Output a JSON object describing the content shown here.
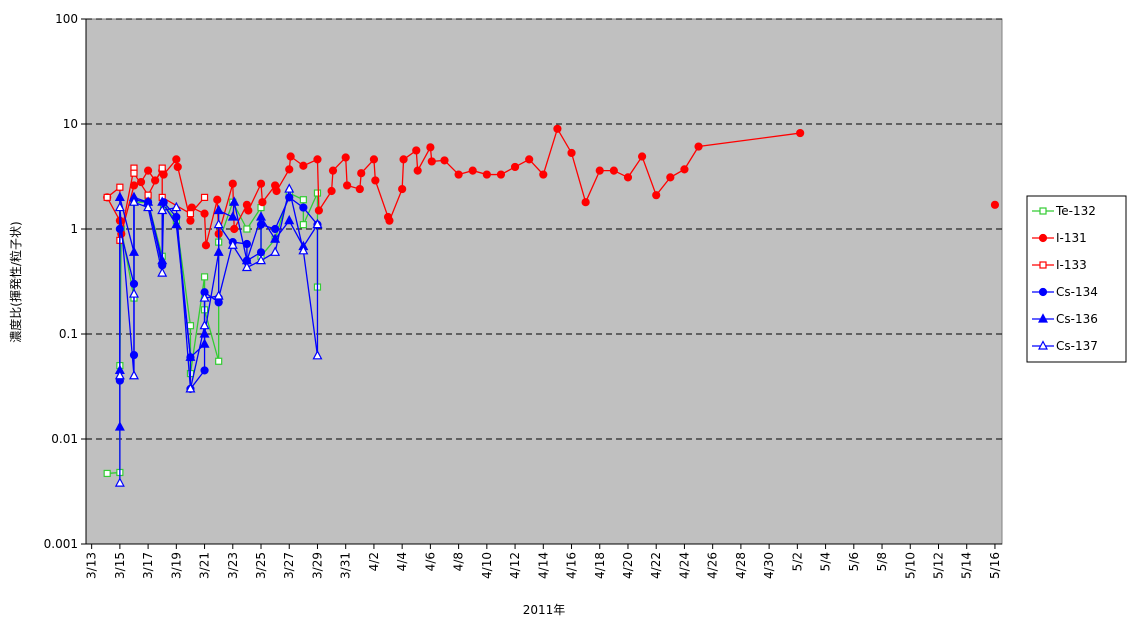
{
  "chart_data": {
    "type": "line",
    "log_y": true,
    "grid": true,
    "legend": "right",
    "plot_background": "#c0c0c0",
    "y_label": "濃度比(揮発性/粒子状)",
    "x_label": "2011年",
    "ylim": [
      0.001,
      100
    ],
    "yticks": [
      0.001,
      0.01,
      0.1,
      1,
      10,
      100
    ],
    "xlim": [
      12.6,
      77.5
    ],
    "xticks": [
      {
        "value": 13,
        "label": "3/13"
      },
      {
        "value": 15,
        "label": "3/15"
      },
      {
        "value": 17,
        "label": "3/17"
      },
      {
        "value": 19,
        "label": "3/19"
      },
      {
        "value": 21,
        "label": "3/21"
      },
      {
        "value": 23,
        "label": "3/23"
      },
      {
        "value": 25,
        "label": "3/25"
      },
      {
        "value": 27,
        "label": "3/27"
      },
      {
        "value": 29,
        "label": "3/29"
      },
      {
        "value": 31,
        "label": "3/31"
      },
      {
        "value": 33,
        "label": "4/2"
      },
      {
        "value": 35,
        "label": "4/4"
      },
      {
        "value": 37,
        "label": "4/6"
      },
      {
        "value": 39,
        "label": "4/8"
      },
      {
        "value": 41,
        "label": "4/10"
      },
      {
        "value": 43,
        "label": "4/12"
      },
      {
        "value": 45,
        "label": "4/14"
      },
      {
        "value": 47,
        "label": "4/16"
      },
      {
        "value": 49,
        "label": "4/18"
      },
      {
        "value": 51,
        "label": "4/20"
      },
      {
        "value": 53,
        "label": "4/22"
      },
      {
        "value": 55,
        "label": "4/24"
      },
      {
        "value": 57,
        "label": "4/26"
      },
      {
        "value": 59,
        "label": "4/28"
      },
      {
        "value": 61,
        "label": "4/30"
      },
      {
        "value": 63,
        "label": "5/2"
      },
      {
        "value": 65,
        "label": "5/4"
      },
      {
        "value": 67,
        "label": "5/6"
      },
      {
        "value": 69,
        "label": "5/8"
      },
      {
        "value": 71,
        "label": "5/10"
      },
      {
        "value": 73,
        "label": "5/12"
      },
      {
        "value": 75,
        "label": "5/14"
      },
      {
        "value": 77,
        "label": "5/16"
      }
    ],
    "series": [
      {
        "name": "Te-132",
        "color": "#33cc33",
        "marker": "square-open",
        "x": [
          14.1,
          15.0,
          15.0,
          15.1,
          16.0,
          16.0,
          17.0,
          18.0,
          18.1,
          19.0,
          20.0,
          20.0,
          21.0,
          21.0,
          22.0,
          22.0,
          23.0,
          24.0,
          25.0,
          25.0,
          26.0,
          27.0,
          28.0,
          28.0,
          29.0,
          29.0
        ],
        "values": [
          0.0047,
          0.0048,
          0.05,
          1.0,
          0.22,
          1.8,
          1.8,
          0.55,
          1.7,
          1.2,
          0.12,
          0.042,
          0.35,
          0.17,
          0.055,
          0.75,
          1.8,
          1.0,
          1.6,
          0.55,
          0.8,
          2.2,
          1.9,
          1.1,
          2.2,
          0.28
        ]
      },
      {
        "name": "I-131",
        "color": "#ff0000",
        "marker": "circle",
        "x": [
          14.1,
          15.0,
          15.1,
          16.0,
          16.5,
          17.0,
          17.5,
          18.0,
          18.1,
          19.0,
          19.1,
          20.0,
          20.1,
          21.0,
          21.1,
          21.9,
          22.0,
          23.0,
          23.1,
          24.0,
          24.1,
          25.0,
          25.1,
          26.0,
          26.1,
          27.0,
          27.1,
          28.0,
          29.0,
          29.1,
          30.0,
          30.1,
          31.0,
          31.1,
          32.0,
          32.1,
          33.0,
          33.1,
          34.0,
          34.1,
          35.0,
          35.1,
          36.0,
          36.1,
          37.0,
          37.1,
          38.0,
          39.0,
          40.0,
          41.0,
          42.0,
          43.0,
          44.0,
          45.0,
          46.0,
          47.0,
          48.0,
          49.0,
          50.0,
          51.0,
          52.0,
          53.0,
          54.0,
          55.0,
          56.0,
          63.2,
          null,
          77.0
        ],
        "values": [
          2.0,
          1.2,
          0.9,
          2.6,
          2.8,
          3.6,
          2.9,
          3.6,
          3.3,
          4.6,
          3.9,
          1.2,
          1.6,
          1.4,
          0.7,
          1.9,
          0.9,
          2.7,
          1.0,
          1.7,
          1.5,
          2.7,
          1.8,
          2.6,
          2.3,
          3.7,
          4.9,
          4.0,
          4.6,
          1.5,
          2.3,
          3.6,
          4.8,
          2.6,
          2.4,
          3.4,
          4.6,
          2.9,
          1.3,
          1.2,
          2.4,
          4.6,
          5.6,
          3.6,
          6.0,
          4.4,
          4.5,
          3.3,
          3.6,
          3.3,
          3.3,
          3.9,
          4.6,
          3.3,
          9.0,
          5.3,
          1.8,
          3.6,
          3.6,
          3.1,
          4.9,
          2.1,
          3.1,
          3.7,
          6.1,
          8.2,
          null,
          1.7
        ]
      },
      {
        "name": "I-133",
        "color": "#ff0000",
        "marker": "square-open",
        "x": [
          14.1,
          15.0,
          15.0,
          16.0,
          16.0,
          17.0,
          18.0,
          18.0,
          20.0,
          21.0
        ],
        "values": [
          2.0,
          2.5,
          0.78,
          3.8,
          3.4,
          2.1,
          3.8,
          2.0,
          1.4,
          2.0
        ]
      },
      {
        "name": "Cs-134",
        "color": "#0000ff",
        "marker": "circle",
        "x": [
          15.0,
          15.0,
          16.0,
          16.0,
          16.0,
          17.0,
          18.0,
          18.1,
          19.0,
          20.0,
          20.0,
          21.0,
          21.0,
          22.0,
          22.0,
          23.0,
          24.0,
          24.0,
          25.0,
          25.0,
          26.0,
          27.0,
          28.0,
          29.0
        ],
        "values": [
          0.036,
          1.0,
          0.3,
          0.063,
          1.9,
          1.8,
          0.45,
          1.8,
          1.3,
          0.06,
          0.03,
          0.045,
          0.25,
          0.2,
          0.22,
          0.75,
          0.72,
          0.5,
          0.6,
          1.1,
          1.0,
          2.0,
          1.6,
          1.1
        ]
      },
      {
        "name": "Cs-136",
        "color": "#0000ff",
        "marker": "triangle",
        "x": [
          15.0,
          15.0,
          15.0,
          16.0,
          16.0,
          17.0,
          18.0,
          18.0,
          19.0,
          20.0,
          21.0,
          21.0,
          22.0,
          22.0,
          23.0,
          23.1,
          24.0,
          25.0,
          26.0,
          27.0,
          28.0,
          29.0
        ],
        "values": [
          0.013,
          0.045,
          2.0,
          0.6,
          2.0,
          1.8,
          0.5,
          1.8,
          1.1,
          0.06,
          0.08,
          0.1,
          0.6,
          1.5,
          1.3,
          1.8,
          0.5,
          1.3,
          0.8,
          1.2,
          0.68,
          1.1
        ]
      },
      {
        "name": "Cs-137",
        "color": "#0000ff",
        "marker": "triangle-open",
        "x": [
          15.0,
          15.0,
          15.0,
          16.0,
          16.0,
          16.0,
          17.0,
          18.0,
          18.0,
          19.0,
          20.0,
          21.0,
          21.0,
          22.0,
          22.0,
          23.0,
          24.0,
          25.0,
          26.0,
          27.0,
          28.0,
          29.0,
          29.0
        ],
        "values": [
          0.0038,
          0.04,
          1.6,
          0.04,
          0.24,
          1.8,
          1.6,
          0.38,
          1.5,
          1.6,
          0.03,
          0.12,
          0.22,
          0.23,
          1.1,
          0.7,
          0.43,
          0.5,
          0.6,
          2.4,
          0.62,
          0.062,
          1.1
        ]
      }
    ]
  }
}
